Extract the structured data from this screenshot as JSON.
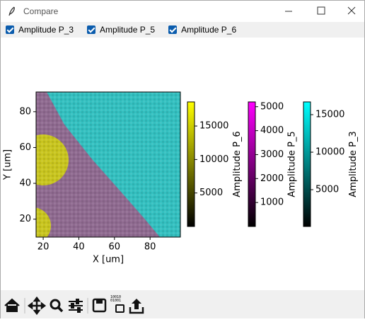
{
  "window": {
    "title": "Compare"
  },
  "checkboxes": [
    {
      "label": "Amplitude P_3",
      "checked": true
    },
    {
      "label": "Amplitude P_5",
      "checked": true
    },
    {
      "label": "Amplitude P_6",
      "checked": true
    }
  ],
  "chart_data": {
    "type": "image",
    "xlabel": "X [um]",
    "ylabel": "Y [um]",
    "xlim": [
      16,
      97
    ],
    "ylim": [
      10,
      91
    ],
    "xticks": [
      20,
      40,
      60,
      80
    ],
    "yticks": [
      20,
      40,
      60,
      80
    ],
    "colorbars": [
      {
        "label": "Amplitude P_6",
        "color": "#ffff00",
        "lim": [
          0,
          18600
        ],
        "ticks": [
          5000,
          10000,
          15000
        ]
      },
      {
        "label": "Amplitude P_5",
        "color": "#ff00ff",
        "lim": [
          0,
          5200
        ],
        "ticks": [
          1000,
          2000,
          3000,
          4000,
          5000
        ]
      },
      {
        "label": "Amplitude P_3",
        "color": "#00ffff",
        "lim": [
          100,
          16700
        ],
        "ticks": [
          5000,
          10000,
          15000
        ]
      }
    ]
  }
}
